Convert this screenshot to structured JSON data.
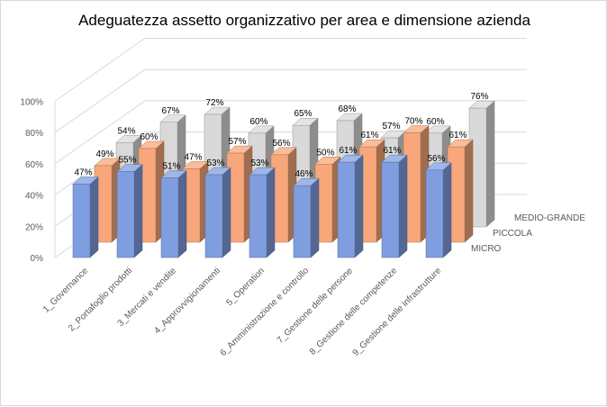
{
  "chart_data": {
    "type": "bar",
    "title": "Adeguatezza assetto organizzativo per area e dimensione azienda",
    "categories": [
      "1_Governance",
      "2_Portafoglio prodotti",
      "3_Mercati e vendite",
      "4_Approvvigionamenti",
      "5_Operation",
      "6_Amministrazione e controllo",
      "7_Gestione delle persone",
      "8_Gestione delle competenze",
      "9_Gestione delle infrastrutture"
    ],
    "series": [
      {
        "name": "MICRO",
        "values": [
          47,
          55,
          51,
          53,
          53,
          46,
          61,
          61,
          56
        ],
        "labels": [
          "47%",
          "55%",
          "51%",
          "53%",
          "53%",
          "46%",
          "61%",
          "61%",
          "56%"
        ],
        "color": "#7f9ee0"
      },
      {
        "name": "PICCOLA",
        "values": [
          49,
          60,
          47,
          57,
          56,
          50,
          61,
          70,
          61
        ],
        "labels": [
          "49%",
          "60%",
          "47%",
          "57%",
          "56%",
          "50%",
          "61%",
          "70%",
          "61%"
        ],
        "color": "#f7a77a"
      },
      {
        "name": "MEDIO-GRANDE",
        "values": [
          54,
          67,
          72,
          60,
          65,
          68,
          57,
          60,
          76
        ],
        "labels": [
          "54%",
          "67%",
          "72%",
          "60%",
          "65%",
          "68%",
          "57%",
          "60%",
          "76%"
        ],
        "color": "#d9d9d9"
      }
    ],
    "yticks": [
      "0%",
      "20%",
      "40%",
      "60%",
      "80%",
      "100%"
    ],
    "ylim": [
      0,
      100
    ],
    "grid": true,
    "projection": "3d-column"
  }
}
